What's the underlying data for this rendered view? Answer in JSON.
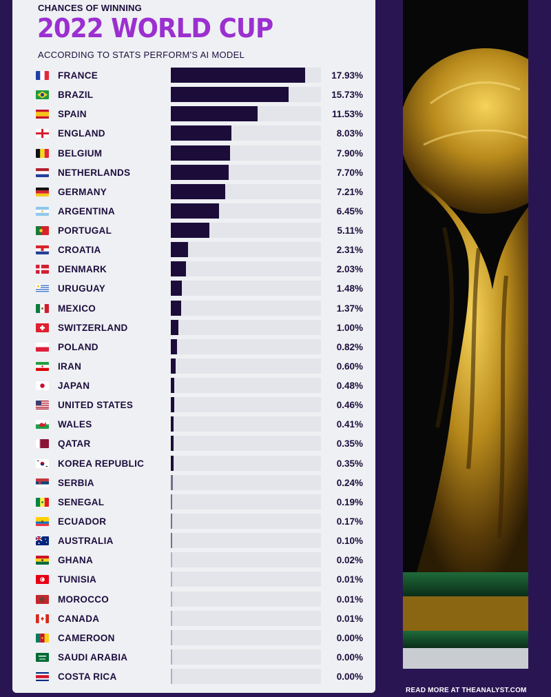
{
  "header": {
    "kicker": "CHANCES OF WINNING",
    "title": "2022 WORLD CUP",
    "subtitle": "ACCORDING TO STATS PERFORM'S AI MODEL"
  },
  "footer": {
    "read_more": "READ MORE AT THEANALYST.COM"
  },
  "colors": {
    "background": "#2a1553",
    "panel": "#eef0f3",
    "bar": "#1c0c3a",
    "title": "#9b2fd0"
  },
  "chart_data": {
    "type": "bar",
    "orientation": "horizontal",
    "title": "2022 WORLD CUP",
    "subtitle": "ACCORDING TO STATS PERFORM'S AI MODEL",
    "xlim": [
      0,
      20
    ],
    "categories": [
      "FRANCE",
      "BRAZIL",
      "SPAIN",
      "ENGLAND",
      "BELGIUM",
      "NETHERLANDS",
      "GERMANY",
      "ARGENTINA",
      "PORTUGAL",
      "CROATIA",
      "DENMARK",
      "URUGUAY",
      "MEXICO",
      "SWITZERLAND",
      "POLAND",
      "IRAN",
      "JAPAN",
      "UNITED STATES",
      "WALES",
      "QATAR",
      "KOREA REPUBLIC",
      "SERBIA",
      "SENEGAL",
      "ECUADOR",
      "AUSTRALIA",
      "GHANA",
      "TUNISIA",
      "MOROCCO",
      "CANADA",
      "CAMEROON",
      "SAUDI ARABIA",
      "COSTA RICA"
    ],
    "values": [
      17.93,
      15.73,
      11.53,
      8.03,
      7.9,
      7.7,
      7.21,
      6.45,
      5.11,
      2.31,
      2.03,
      1.48,
      1.37,
      1.0,
      0.82,
      0.6,
      0.48,
      0.46,
      0.41,
      0.35,
      0.35,
      0.24,
      0.19,
      0.17,
      0.1,
      0.02,
      0.01,
      0.01,
      0.01,
      0.0,
      0.0,
      0.0
    ],
    "labels": [
      "17.93%",
      "15.73%",
      "11.53%",
      "8.03%",
      "7.90%",
      "7.70%",
      "7.21%",
      "6.45%",
      "5.11%",
      "2.31%",
      "2.03%",
      "1.48%",
      "1.37%",
      "1.00%",
      "0.82%",
      "0.60%",
      "0.48%",
      "0.46%",
      "0.41%",
      "0.35%",
      "0.35%",
      "0.24%",
      "0.19%",
      "0.17%",
      "0.10%",
      "0.02%",
      "0.01%",
      "0.01%",
      "0.01%",
      "0.00%",
      "0.00%",
      "0.00%"
    ],
    "flags": [
      "france-flag-icon",
      "brazil-flag-icon",
      "spain-flag-icon",
      "england-flag-icon",
      "belgium-flag-icon",
      "netherlands-flag-icon",
      "germany-flag-icon",
      "argentina-flag-icon",
      "portugal-flag-icon",
      "croatia-flag-icon",
      "denmark-flag-icon",
      "uruguay-flag-icon",
      "mexico-flag-icon",
      "switzerland-flag-icon",
      "poland-flag-icon",
      "iran-flag-icon",
      "japan-flag-icon",
      "united-states-flag-icon",
      "wales-flag-icon",
      "qatar-flag-icon",
      "korea-republic-flag-icon",
      "serbia-flag-icon",
      "senegal-flag-icon",
      "ecuador-flag-icon",
      "australia-flag-icon",
      "ghana-flag-icon",
      "tunisia-flag-icon",
      "morocco-flag-icon",
      "canada-flag-icon",
      "cameroon-flag-icon",
      "saudi-arabia-flag-icon",
      "costa-rica-flag-icon"
    ]
  }
}
